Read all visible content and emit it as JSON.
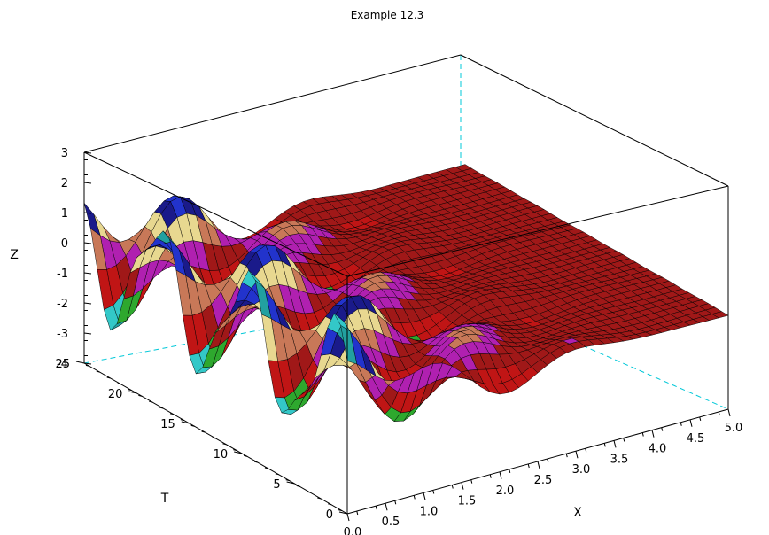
{
  "chart_data": {
    "type": "surface3d",
    "title": "Example 12.3",
    "xlabel": "X",
    "ylabel": "T",
    "zlabel": "Z",
    "x_ticks": [
      "0.0",
      "0.5",
      "1.0",
      "1.5",
      "2.0",
      "2.5",
      "3.0",
      "3.5",
      "4.0",
      "4.5",
      "5.0"
    ],
    "t_ticks": [
      "0",
      "5",
      "10",
      "15",
      "20",
      "25"
    ],
    "z_ticks": [
      "-4",
      "-3",
      "-2",
      "-1",
      "0",
      "1",
      "2",
      "3"
    ],
    "xlim": [
      0,
      5
    ],
    "tlim": [
      0,
      25
    ],
    "zlim": [
      -4,
      3
    ],
    "colormap": [
      "#1a1a8a",
      "#2233cc",
      "#22a0a0",
      "#33c8c8",
      "#2ea82e",
      "#c01515",
      "#a01818",
      "#b020b0",
      "#c87858",
      "#e8d890"
    ],
    "mesh_color": "#000000",
    "hidden_axis_color": "#00c8d8"
  }
}
